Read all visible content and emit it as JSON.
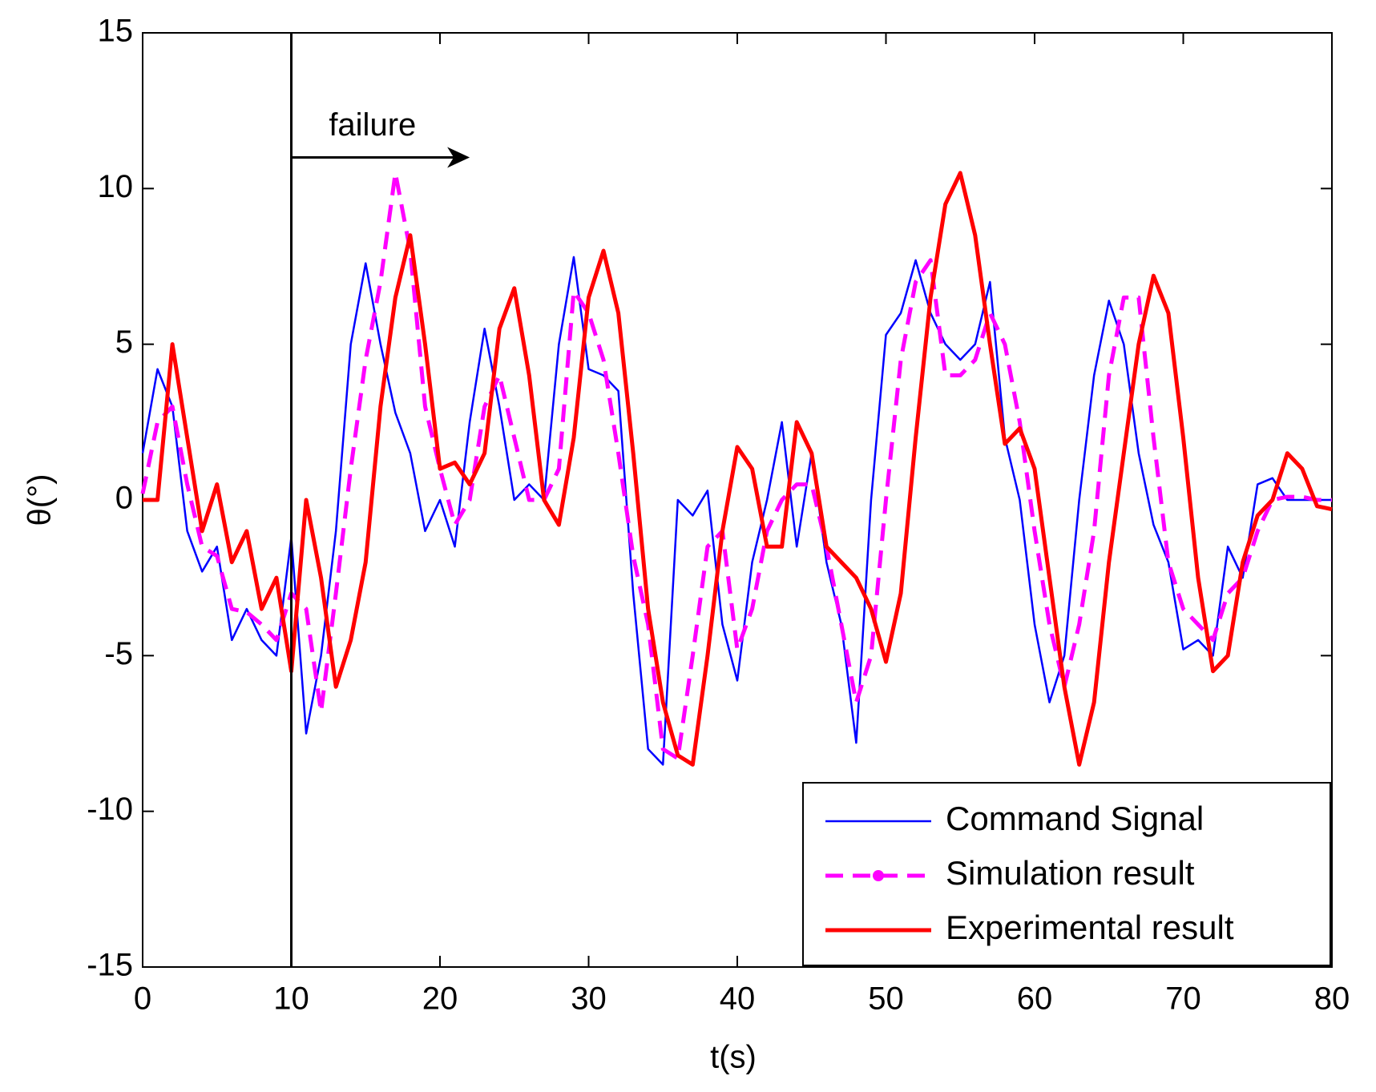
{
  "chart_data": {
    "type": "line",
    "xlabel": "t(s)",
    "ylabel": "θ(°)",
    "xlim": [
      0,
      80
    ],
    "xticks": [
      0,
      10,
      20,
      30,
      40,
      50,
      60,
      70,
      80
    ],
    "ylim": [
      -15,
      15
    ],
    "yticks": [
      -15,
      -10,
      -5,
      0,
      5,
      10,
      15
    ],
    "legend": "lower right",
    "annotation": {
      "text": "failure",
      "x": 10,
      "x_end": 22,
      "y": 11
    },
    "x": [
      0,
      1,
      2,
      3,
      4,
      5,
      6,
      7,
      8,
      9,
      10,
      11,
      12,
      13,
      14,
      15,
      16,
      17,
      18,
      19,
      20,
      21,
      22,
      23,
      24,
      25,
      26,
      27,
      28,
      29,
      30,
      31,
      32,
      33,
      34,
      35,
      36,
      37,
      38,
      39,
      40,
      41,
      42,
      43,
      44,
      45,
      46,
      47,
      48,
      49,
      50,
      51,
      52,
      53,
      54,
      55,
      56,
      57,
      58,
      59,
      60,
      61,
      62,
      63,
      64,
      65,
      66,
      67,
      68,
      69,
      70,
      71,
      72,
      73,
      74,
      75,
      76,
      77,
      78,
      79,
      80
    ],
    "series": [
      {
        "name": "Command Signal",
        "color": "#0000ff",
        "style": "solid",
        "values": [
          1.5,
          4.2,
          3,
          -1,
          -2.3,
          -1.5,
          -4.5,
          -3.5,
          -4.5,
          -5,
          -1.2,
          -7.5,
          -5,
          -1,
          5,
          7.6,
          5,
          2.8,
          1.5,
          -1,
          0,
          -1.5,
          2.5,
          5.5,
          3,
          0,
          0.5,
          0,
          5,
          7.8,
          4.2,
          4,
          3.5,
          -3,
          -8,
          -8.5,
          0,
          -0.5,
          0.3,
          -4,
          -5.8,
          -2,
          0,
          2.5,
          -1.5,
          1.5,
          -2,
          -4,
          -7.8,
          0,
          5.3,
          6,
          7.7,
          6,
          5,
          4.5,
          5,
          7,
          2,
          0,
          -4,
          -6.5,
          -5,
          0,
          4,
          6.4,
          5,
          1.5,
          -0.8,
          -2,
          -4.8,
          -4.5,
          -5,
          -1.5,
          -2.5,
          0.5,
          0.7,
          0,
          0,
          0,
          0
        ]
      },
      {
        "name": "Simulation result",
        "color": "#ff00ff",
        "style": "dashed",
        "values": [
          0.2,
          2.5,
          3,
          0.5,
          -1.5,
          -1.8,
          -3.5,
          -3.6,
          -4,
          -4.5,
          -3,
          -3.5,
          -6.8,
          -3,
          1,
          4.5,
          7,
          10.5,
          8,
          3,
          1,
          -0.8,
          0,
          3,
          4,
          2,
          0,
          0,
          1,
          6.7,
          6,
          4.5,
          1.5,
          -1.8,
          -4,
          -8,
          -8.3,
          -5,
          -1.5,
          -1,
          -4.8,
          -3.5,
          -1,
          0,
          0.5,
          0.5,
          -1.5,
          -4,
          -6.5,
          -5,
          0,
          4.5,
          7,
          7.7,
          4,
          4,
          4.5,
          6,
          5,
          2.5,
          -1,
          -4,
          -6,
          -4,
          -1,
          4,
          6.5,
          6.5,
          2,
          -2,
          -3.5,
          -4,
          -4.5,
          -3,
          -2.5,
          -1,
          0,
          0.1,
          0.1,
          0,
          0
        ]
      },
      {
        "name": "Experimental result",
        "color": "#ff0000",
        "style": "solid-thick",
        "values": [
          0,
          0,
          5,
          2,
          -1,
          0.5,
          -2,
          -1,
          -3.5,
          -2.5,
          -5.5,
          0,
          -2.5,
          -6,
          -4.5,
          -2,
          3,
          6.5,
          8.5,
          5,
          1,
          1.2,
          0.5,
          1.5,
          5.5,
          6.8,
          4,
          0,
          -0.8,
          2,
          6.5,
          8,
          6,
          1.5,
          -3.5,
          -6.5,
          -8.2,
          -8.5,
          -5,
          -1,
          1.7,
          1,
          -1.5,
          -1.5,
          2.5,
          1.5,
          -1.5,
          -2,
          -2.5,
          -3.5,
          -5.2,
          -3,
          2,
          6.5,
          9.5,
          10.5,
          8.5,
          5,
          1.8,
          2.3,
          1,
          -2.5,
          -6,
          -8.5,
          -6.5,
          -2,
          1.5,
          5,
          7.2,
          6,
          2,
          -2.5,
          -5.5,
          -5,
          -2,
          -0.5,
          0,
          1.5,
          1,
          -0.2,
          -0.3
        ]
      }
    ]
  }
}
